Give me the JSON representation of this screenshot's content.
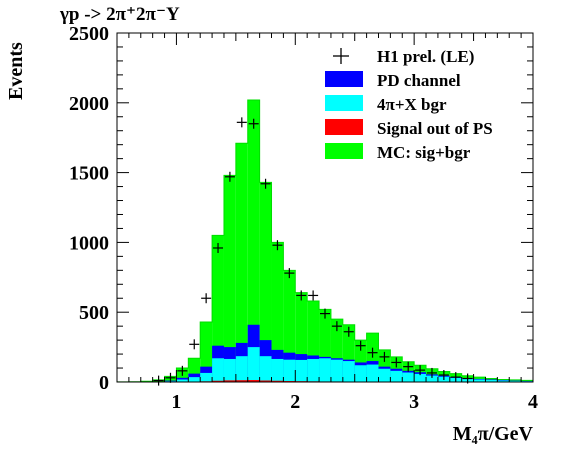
{
  "chart_data": {
    "type": "histogram",
    "title": "γp -> 2π⁺2π⁻Y",
    "xlabel": "M₄π/GeV",
    "ylabel": "Events",
    "xlim": [
      0.5,
      4.0
    ],
    "ylim": [
      0,
      2500
    ],
    "xticks": [
      1,
      2,
      3,
      4
    ],
    "yticks": [
      0,
      500,
      1000,
      1500,
      2000,
      2500
    ],
    "legend_position": "top-right",
    "bin_edges": [
      0.5,
      0.6,
      0.7,
      0.8,
      0.9,
      1.0,
      1.1,
      1.2,
      1.3,
      1.4,
      1.5,
      1.6,
      1.7,
      1.8,
      1.9,
      2.0,
      2.1,
      2.2,
      2.3,
      2.4,
      2.5,
      2.6,
      2.7,
      2.8,
      2.9,
      3.0,
      3.1,
      3.2,
      3.3,
      3.4,
      3.5,
      3.6,
      3.7,
      3.8,
      3.9,
      4.0
    ],
    "series": [
      {
        "name": "MC: sig+bgr",
        "style": "filled-histogram",
        "color": "#00ff00",
        "values": [
          1,
          2,
          5,
          15,
          40,
          100,
          170,
          430,
          1050,
          1480,
          1710,
          2020,
          1430,
          1000,
          800,
          640,
          580,
          520,
          450,
          410,
          300,
          350,
          230,
          180,
          145,
          120,
          95,
          75,
          60,
          45,
          35,
          25,
          18,
          15,
          12
        ]
      },
      {
        "name": "PD channel",
        "style": "filled-histogram",
        "color": "#0000ff",
        "values": [
          0,
          0,
          1,
          3,
          10,
          30,
          60,
          110,
          260,
          250,
          280,
          410,
          300,
          230,
          210,
          200,
          190,
          180,
          170,
          160,
          140,
          150,
          110,
          95,
          80,
          70,
          55,
          45,
          35,
          28,
          22,
          18,
          14,
          10,
          8
        ]
      },
      {
        "name": "4π+X bgr",
        "style": "filled-histogram",
        "color": "#00ffff",
        "values": [
          0,
          0,
          1,
          2,
          6,
          18,
          35,
          65,
          170,
          165,
          185,
          250,
          185,
          165,
          160,
          158,
          165,
          170,
          160,
          150,
          120,
          125,
          95,
          80,
          68,
          58,
          46,
          38,
          30,
          24,
          18,
          14,
          11,
          8,
          6
        ]
      },
      {
        "name": "Signal out of PS",
        "style": "filled-histogram",
        "color": "#ff0000",
        "values": [
          0,
          0,
          0,
          0,
          1,
          2,
          3,
          5,
          9,
          12,
          13,
          14,
          11,
          9,
          7,
          6,
          5,
          4,
          4,
          3,
          3,
          2,
          2,
          1,
          1,
          1,
          1,
          1,
          0,
          0,
          0,
          0,
          0,
          0,
          0
        ]
      },
      {
        "name": "H1 prel. (LE)",
        "style": "points",
        "color": "#000000",
        "x": [
          0.85,
          0.95,
          1.05,
          1.15,
          1.25,
          1.35,
          1.45,
          1.55,
          1.65,
          1.75,
          1.85,
          1.95,
          2.05,
          2.15,
          2.25,
          2.35,
          2.45,
          2.55,
          2.65,
          2.75,
          2.85,
          2.95,
          3.05,
          3.15,
          3.25,
          3.35,
          3.45
        ],
        "y": [
          10,
          30,
          80,
          270,
          600,
          960,
          1470,
          1860,
          1850,
          1420,
          980,
          780,
          620,
          620,
          490,
          400,
          360,
          260,
          210,
          180,
          140,
          110,
          85,
          65,
          50,
          35,
          25
        ]
      }
    ]
  }
}
